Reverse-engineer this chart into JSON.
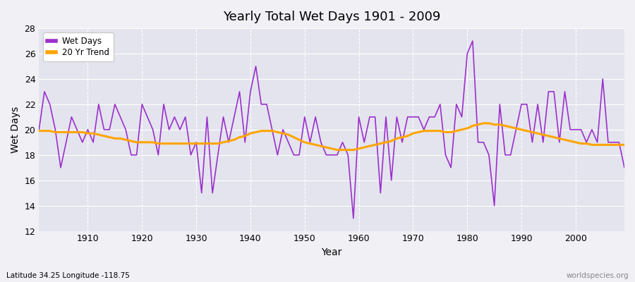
{
  "title": "Yearly Total Wet Days 1901 - 2009",
  "xlabel": "Year",
  "ylabel": "Wet Days",
  "subtitle": "Latitude 34.25 Longitude -118.75",
  "watermark": "worldspecies.org",
  "line_color": "#9B30CC",
  "trend_color": "#FFA500",
  "bg_color": "#F0F0F5",
  "plot_bg_color": "#E4E4EE",
  "ylim": [
    12,
    28
  ],
  "yticks": [
    12,
    14,
    16,
    18,
    20,
    22,
    24,
    26,
    28
  ],
  "xticks": [
    1910,
    1920,
    1930,
    1940,
    1950,
    1960,
    1970,
    1980,
    1990,
    2000
  ],
  "years": [
    1901,
    1902,
    1903,
    1904,
    1905,
    1906,
    1907,
    1908,
    1909,
    1910,
    1911,
    1912,
    1913,
    1914,
    1915,
    1916,
    1917,
    1918,
    1919,
    1920,
    1921,
    1922,
    1923,
    1924,
    1925,
    1926,
    1927,
    1928,
    1929,
    1930,
    1931,
    1932,
    1933,
    1934,
    1935,
    1936,
    1937,
    1938,
    1939,
    1940,
    1941,
    1942,
    1943,
    1944,
    1945,
    1946,
    1947,
    1948,
    1949,
    1950,
    1951,
    1952,
    1953,
    1954,
    1955,
    1956,
    1957,
    1958,
    1959,
    1960,
    1961,
    1962,
    1963,
    1964,
    1965,
    1966,
    1967,
    1968,
    1969,
    1970,
    1971,
    1972,
    1973,
    1974,
    1975,
    1976,
    1977,
    1978,
    1979,
    1980,
    1981,
    1982,
    1983,
    1984,
    1985,
    1986,
    1987,
    1988,
    1989,
    1990,
    1991,
    1992,
    1993,
    1994,
    1995,
    1996,
    1997,
    1998,
    1999,
    2000,
    2001,
    2002,
    2003,
    2004,
    2005,
    2006,
    2007,
    2008,
    2009
  ],
  "wet_days": [
    20,
    23,
    22,
    20,
    17,
    19,
    21,
    20,
    19,
    20,
    19,
    22,
    20,
    20,
    22,
    21,
    20,
    18,
    18,
    22,
    21,
    20,
    18,
    22,
    20,
    21,
    20,
    21,
    18,
    19,
    15,
    21,
    15,
    18,
    21,
    19,
    21,
    23,
    19,
    23,
    25,
    22,
    22,
    20,
    18,
    20,
    19,
    18,
    18,
    21,
    19,
    21,
    19,
    18,
    18,
    18,
    19,
    18,
    13,
    21,
    19,
    21,
    21,
    15,
    21,
    16,
    21,
    19,
    21,
    21,
    21,
    20,
    21,
    21,
    22,
    18,
    17,
    22,
    21,
    26,
    27,
    19,
    19,
    18,
    14,
    22,
    18,
    18,
    20,
    22,
    22,
    19,
    22,
    19,
    23,
    23,
    19,
    23,
    20,
    20,
    20,
    19,
    20,
    19,
    24,
    19,
    19,
    19,
    17
  ],
  "trend_years": [
    1901,
    1902,
    1903,
    1904,
    1905,
    1906,
    1907,
    1908,
    1909,
    1910,
    1911,
    1912,
    1913,
    1914,
    1915,
    1916,
    1917,
    1918,
    1919,
    1920,
    1921,
    1922,
    1923,
    1924,
    1925,
    1926,
    1927,
    1928,
    1929,
    1930,
    1931,
    1932,
    1933,
    1934,
    1935,
    1936,
    1937,
    1938,
    1939,
    1940,
    1941,
    1942,
    1943,
    1944,
    1945,
    1946,
    1947,
    1948,
    1949,
    1950,
    1951,
    1952,
    1953,
    1954,
    1955,
    1956,
    1957,
    1958,
    1959,
    1960,
    1961,
    1962,
    1963,
    1964,
    1965,
    1966,
    1967,
    1968,
    1969,
    1970,
    1971,
    1972,
    1973,
    1974,
    1975,
    1976,
    1977,
    1978,
    1979,
    1980,
    1981,
    1982,
    1983,
    1984,
    1985,
    1986,
    1987,
    1988,
    1989,
    1990,
    1991,
    1992,
    1993,
    1994,
    1995,
    1996,
    1997,
    1998,
    1999,
    2000,
    2001,
    2002,
    2003,
    2004,
    2005,
    2006,
    2007,
    2008,
    2009
  ],
  "trend_values": [
    19.9,
    19.9,
    19.9,
    19.8,
    19.8,
    19.8,
    19.8,
    19.8,
    19.8,
    19.7,
    19.7,
    19.6,
    19.5,
    19.4,
    19.3,
    19.3,
    19.2,
    19.1,
    19.0,
    19.0,
    19.0,
    19.0,
    18.9,
    18.9,
    18.9,
    18.9,
    18.9,
    18.9,
    18.9,
    18.9,
    18.9,
    18.9,
    18.9,
    18.9,
    19.0,
    19.1,
    19.2,
    19.4,
    19.5,
    19.7,
    19.8,
    19.9,
    19.9,
    19.9,
    19.8,
    19.7,
    19.6,
    19.4,
    19.2,
    19.0,
    18.9,
    18.8,
    18.7,
    18.6,
    18.5,
    18.4,
    18.4,
    18.4,
    18.4,
    18.5,
    18.6,
    18.7,
    18.8,
    18.9,
    19.0,
    19.1,
    19.3,
    19.4,
    19.5,
    19.7,
    19.8,
    19.9,
    19.9,
    19.9,
    19.9,
    19.8,
    19.8,
    19.9,
    20.0,
    20.1,
    20.3,
    20.4,
    20.5,
    20.5,
    20.4,
    20.4,
    20.3,
    20.2,
    20.1,
    20.0,
    19.9,
    19.8,
    19.7,
    19.6,
    19.5,
    19.4,
    19.3,
    19.2,
    19.1,
    19.0,
    18.9,
    18.9,
    18.8,
    18.8,
    18.8,
    18.8,
    18.8,
    18.8,
    18.8
  ]
}
